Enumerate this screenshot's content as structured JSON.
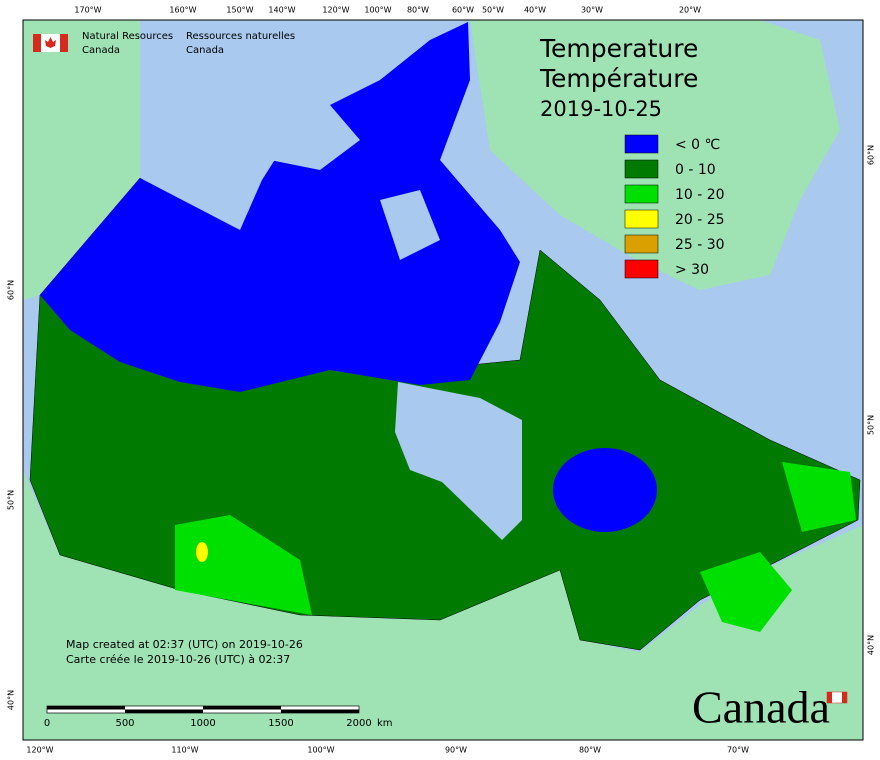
{
  "header": {
    "agency_en": [
      "Natural Resources",
      "Canada"
    ],
    "agency_fr": [
      "Ressources naturelles",
      "Canada"
    ]
  },
  "title": [
    "Temperature",
    "Température",
    "2019-10-25"
  ],
  "legend": [
    {
      "label": "< 0 ℃",
      "color": "#0000ff"
    },
    {
      "label": "0 - 10",
      "color": "#007a00"
    },
    {
      "label": "10 - 20",
      "color": "#00e000"
    },
    {
      "label": "20 - 25",
      "color": "#ffff00"
    },
    {
      "label": "25 - 30",
      "color": "#d9a000"
    },
    {
      "label": "> 30",
      "color": "#ff0000"
    }
  ],
  "notes": [
    "Map created at 02:37 (UTC) on 2019-10-26",
    "Carte créée le 2019-10-26 (UTC) à 02:37"
  ],
  "scale_bar": {
    "ticks": [
      0,
      500,
      1000,
      1500,
      2000
    ],
    "unit": "km"
  },
  "graticule": {
    "top": [
      "170°W",
      "160°W",
      "150°W",
      "140°W",
      "120°W",
      "100°W",
      "80°W",
      "60°W",
      "50°W",
      "40°W",
      "30°W",
      "20°W"
    ],
    "bottom": [
      "120°W",
      "110°W",
      "100°W",
      "90°W",
      "80°W",
      "70°W"
    ],
    "left": [
      "60°N",
      "50°N",
      "40°N"
    ],
    "right": [
      "60°N",
      "50°N",
      "40°N"
    ]
  },
  "wordmark": "Canada"
}
